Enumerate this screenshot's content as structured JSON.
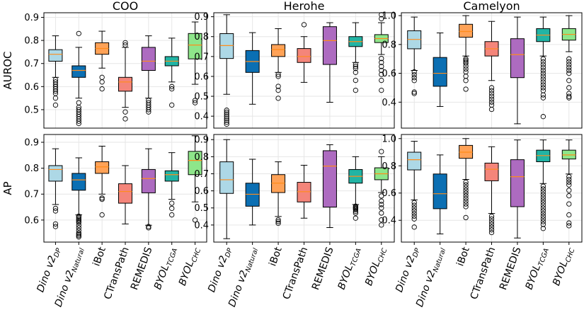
{
  "chart_data": {
    "type": "box",
    "figure": {
      "row_labels": [
        "AUROC",
        "AP"
      ],
      "column_titles": [
        "COO",
        "Herohe",
        "Camelyon"
      ],
      "models": [
        {
          "base": "Dino v2",
          "sub": "DP"
        },
        {
          "base": "Dino v2",
          "sub": "Natural"
        },
        {
          "base": "iBot",
          "sub": ""
        },
        {
          "base": "CTransPath",
          "sub": ""
        },
        {
          "base": "REMEDIS",
          "sub": ""
        },
        {
          "base": "BYOL",
          "sub": "TCGA"
        },
        {
          "base": "BYOL",
          "sub": "CHC"
        }
      ],
      "colors": [
        "#add8e6",
        "#0b6fb3",
        "#ffa257",
        "#f4857a",
        "#ad6bc0",
        "#22b4a4",
        "#8ee68a"
      ],
      "median_color": "#ff8c1a"
    },
    "panels": [
      {
        "row": 0,
        "col": 0,
        "metric": "AUROC",
        "dataset": "COO",
        "ylim": [
          0.42,
          0.92
        ],
        "yticks": [
          0.5,
          0.6,
          0.7,
          0.8,
          0.9
        ],
        "boxes": [
          {
            "whislo": 0.64,
            "q1": 0.71,
            "med": 0.74,
            "q3": 0.76,
            "whishi": 0.82,
            "fliers": [
              0.63,
              0.62,
              0.61,
              0.6,
              0.59,
              0.58,
              0.57,
              0.55,
              0.52
            ]
          },
          {
            "whislo": 0.55,
            "q1": 0.64,
            "med": 0.67,
            "q3": 0.69,
            "whishi": 0.77,
            "fliers": [
              0.83,
              0.53,
              0.51,
              0.5,
              0.49,
              0.48,
              0.47,
              0.46,
              0.45,
              0.44
            ]
          },
          {
            "whislo": 0.68,
            "q1": 0.74,
            "med": 0.765,
            "q3": 0.79,
            "whishi": 0.84,
            "fliers": [
              0.64,
              0.62,
              0.59
            ]
          },
          {
            "whislo": 0.51,
            "q1": 0.58,
            "med": 0.62,
            "q3": 0.64,
            "whishi": 0.77,
            "fliers": [
              0.79,
              0.78,
              0.49,
              0.46
            ]
          },
          {
            "whislo": 0.55,
            "q1": 0.67,
            "med": 0.71,
            "q3": 0.77,
            "whishi": 0.82,
            "fliers": [
              0.54,
              0.53,
              0.52,
              0.51,
              0.5,
              0.49
            ]
          },
          {
            "whislo": 0.62,
            "q1": 0.69,
            "med": 0.71,
            "q3": 0.73,
            "whishi": 0.81,
            "fliers": [
              0.6,
              0.59,
              0.52
            ]
          },
          {
            "whislo": 0.61,
            "q1": 0.72,
            "med": 0.78,
            "q3": 0.83,
            "whishi": 0.88,
            "fliers": [
              0.54,
              0.53
            ]
          }
        ]
      },
      {
        "row": 0,
        "col": 1,
        "metric": "AUROC",
        "dataset": "Herohe",
        "ylim": [
          0.34,
          0.92
        ],
        "yticks": [
          0.4,
          0.5,
          0.6,
          0.7,
          0.8,
          0.9
        ],
        "boxes": [
          {
            "whislo": 0.51,
            "q1": 0.69,
            "med": 0.755,
            "q3": 0.815,
            "whishi": 0.91,
            "fliers": [
              0.43,
              0.42,
              0.41,
              0.4,
              0.39,
              0.38,
              0.37,
              0.36
            ]
          },
          {
            "whislo": 0.46,
            "q1": 0.62,
            "med": 0.675,
            "q3": 0.73,
            "whishi": 0.82,
            "fliers": []
          },
          {
            "whislo": 0.62,
            "q1": 0.7,
            "med": 0.735,
            "q3": 0.76,
            "whishi": 0.84,
            "fliers": [
              0.61,
              0.6,
              0.55,
              0.53,
              0.49
            ]
          },
          {
            "whislo": 0.57,
            "q1": 0.67,
            "med": 0.7,
            "q3": 0.74,
            "whishi": 0.8,
            "fliers": [
              0.86
            ]
          },
          {
            "whislo": 0.47,
            "q1": 0.66,
            "med": 0.78,
            "q3": 0.85,
            "whishi": 0.87,
            "fliers": []
          },
          {
            "whislo": 0.67,
            "q1": 0.75,
            "med": 0.775,
            "q3": 0.8,
            "whishi": 0.87,
            "fliers": [
              0.66,
              0.65,
              0.64,
              0.62,
              0.58,
              0.53
            ]
          },
          {
            "whislo": 0.71,
            "q1": 0.77,
            "med": 0.79,
            "q3": 0.81,
            "whishi": 0.87,
            "fliers": [
              0.91,
              0.89,
              0.69,
              0.67,
              0.65,
              0.63,
              0.61,
              0.58,
              0.53
            ]
          }
        ]
      },
      {
        "row": 0,
        "col": 2,
        "metric": "AUROC",
        "dataset": "Camelyon",
        "ylim": [
          0.22,
          1.02
        ],
        "yticks": [
          0.4,
          0.6,
          0.8,
          1.0
        ],
        "boxes": [
          {
            "whislo": 0.62,
            "q1": 0.77,
            "med": 0.835,
            "q3": 0.895,
            "whishi": 0.99,
            "fliers": [
              0.61,
              0.59,
              0.57,
              0.55,
              0.47,
              0.46
            ]
          },
          {
            "whislo": 0.37,
            "q1": 0.51,
            "med": 0.6,
            "q3": 0.71,
            "whishi": 0.88,
            "fliers": []
          },
          {
            "whislo": 0.72,
            "q1": 0.85,
            "med": 0.89,
            "q3": 0.94,
            "whishi": 1.0,
            "fliers": [
              0.7,
              0.69,
              0.68,
              0.67,
              0.65,
              0.63,
              0.61,
              0.58,
              0.55,
              0.49
            ]
          },
          {
            "whislo": 0.55,
            "q1": 0.72,
            "med": 0.77,
            "q3": 0.82,
            "whishi": 0.96,
            "fliers": [
              0.5,
              0.48,
              0.46,
              0.44,
              0.42,
              0.4,
              0.38,
              0.35
            ]
          },
          {
            "whislo": 0.25,
            "q1": 0.57,
            "med": 0.73,
            "q3": 0.84,
            "whishi": 0.99,
            "fliers": []
          },
          {
            "whislo": 0.72,
            "q1": 0.82,
            "med": 0.865,
            "q3": 0.91,
            "whishi": 0.99,
            "fliers": [
              0.7,
              0.68,
              0.66,
              0.64,
              0.62,
              0.6,
              0.58,
              0.56,
              0.54,
              0.52,
              0.5,
              0.48,
              0.45,
              0.43,
              0.3
            ]
          },
          {
            "whislo": 0.75,
            "q1": 0.83,
            "med": 0.87,
            "q3": 0.91,
            "whishi": 1.0,
            "fliers": [
              0.7,
              0.68,
              0.66,
              0.64,
              0.62,
              0.6,
              0.55,
              0.5,
              0.46,
              0.44,
              0.43
            ]
          }
        ]
      },
      {
        "row": 1,
        "col": 0,
        "metric": "AP",
        "dataset": "COO",
        "ylim": [
          0.515,
          0.93
        ],
        "yticks": [
          0.6,
          0.7,
          0.8,
          0.9
        ],
        "boxes": [
          {
            "whislo": 0.66,
            "q1": 0.75,
            "med": 0.795,
            "q3": 0.81,
            "whishi": 0.875,
            "fliers": [
              0.645,
              0.635,
              0.585,
              0.575
            ]
          },
          {
            "whislo": 0.62,
            "q1": 0.715,
            "med": 0.755,
            "q3": 0.78,
            "whishi": 0.84,
            "fliers": [
              0.615,
              0.61,
              0.605,
              0.6,
              0.595,
              0.59,
              0.58,
              0.57,
              0.56,
              0.55,
              0.545,
              0.54,
              0.535
            ]
          },
          {
            "whislo": 0.7,
            "q1": 0.78,
            "med": 0.805,
            "q3": 0.825,
            "whishi": 0.885,
            "fliers": [
              0.685,
              0.68,
              0.62
            ]
          },
          {
            "whislo": 0.585,
            "q1": 0.665,
            "med": 0.71,
            "q3": 0.74,
            "whishi": 0.81,
            "fliers": []
          },
          {
            "whislo": 0.58,
            "q1": 0.705,
            "med": 0.76,
            "q3": 0.795,
            "whishi": 0.875,
            "fliers": [
              0.575,
              0.57
            ]
          },
          {
            "whislo": 0.68,
            "q1": 0.75,
            "med": 0.775,
            "q3": 0.79,
            "whishi": 0.86,
            "fliers": [
              0.665,
              0.645,
              0.62
            ]
          },
          {
            "whislo": 0.67,
            "q1": 0.775,
            "med": 0.83,
            "q3": 0.865,
            "whishi": 0.925,
            "fliers": [
              0.6
            ]
          }
        ]
      },
      {
        "row": 1,
        "col": 1,
        "metric": "AP",
        "dataset": "Herohe",
        "ylim": [
          0.3,
          0.93
        ],
        "yticks": [
          0.4,
          0.5,
          0.6,
          0.7,
          0.8,
          0.9
        ],
        "boxes": [
          {
            "whislo": 0.32,
            "q1": 0.585,
            "med": 0.665,
            "q3": 0.77,
            "whishi": 0.9,
            "fliers": []
          },
          {
            "whislo": 0.4,
            "q1": 0.51,
            "med": 0.58,
            "q3": 0.645,
            "whishi": 0.785,
            "fliers": []
          },
          {
            "whislo": 0.45,
            "q1": 0.59,
            "med": 0.645,
            "q3": 0.695,
            "whishi": 0.77,
            "fliers": [
              0.43,
              0.42,
              0.41
            ]
          },
          {
            "whislo": 0.44,
            "q1": 0.535,
            "med": 0.595,
            "q3": 0.65,
            "whishi": 0.75,
            "fliers": []
          },
          {
            "whislo": 0.385,
            "q1": 0.505,
            "med": 0.745,
            "q3": 0.835,
            "whishi": 0.87,
            "fliers": []
          },
          {
            "whislo": 0.52,
            "q1": 0.645,
            "med": 0.685,
            "q3": 0.725,
            "whishi": 0.8,
            "fliers": [
              0.51,
              0.505,
              0.5,
              0.495,
              0.49,
              0.48,
              0.47,
              0.44
            ]
          },
          {
            "whislo": 0.59,
            "q1": 0.665,
            "med": 0.7,
            "q3": 0.735,
            "whishi": 0.8,
            "fliers": [
              0.83,
              0.57,
              0.54,
              0.52,
              0.5,
              0.47,
              0.43,
              0.4
            ]
          }
        ]
      },
      {
        "row": 1,
        "col": 2,
        "metric": "AP",
        "dataset": "Camelyon",
        "ylim": [
          0.24,
          1.03
        ],
        "yticks": [
          0.4,
          0.6,
          0.8,
          1.0
        ],
        "boxes": [
          {
            "whislo": 0.55,
            "q1": 0.77,
            "med": 0.845,
            "q3": 0.9,
            "whishi": 0.98,
            "fliers": [
              0.53,
              0.51,
              0.49,
              0.47,
              0.45,
              0.43,
              0.41,
              0.35
            ]
          },
          {
            "whislo": 0.3,
            "q1": 0.485,
            "med": 0.595,
            "q3": 0.74,
            "whishi": 0.88,
            "fliers": []
          },
          {
            "whislo": 0.7,
            "q1": 0.855,
            "med": 0.9,
            "q3": 0.95,
            "whishi": 1.0,
            "fliers": [
              0.68,
              0.66,
              0.64,
              0.62,
              0.6,
              0.58,
              0.56,
              0.54,
              0.52,
              0.5,
              0.42
            ]
          },
          {
            "whislo": 0.45,
            "q1": 0.69,
            "med": 0.775,
            "q3": 0.82,
            "whishi": 0.94,
            "fliers": [
              0.43,
              0.41,
              0.39,
              0.37,
              0.35,
              0.33,
              0.31
            ]
          },
          {
            "whislo": 0.27,
            "q1": 0.5,
            "med": 0.72,
            "q3": 0.845,
            "whishi": 0.99,
            "fliers": []
          },
          {
            "whislo": 0.67,
            "q1": 0.83,
            "med": 0.875,
            "q3": 0.915,
            "whishi": 0.99,
            "fliers": [
              0.65,
              0.63,
              0.61,
              0.59,
              0.57,
              0.55,
              0.53,
              0.51,
              0.49,
              0.47,
              0.45,
              0.43,
              0.41,
              0.39,
              0.37,
              0.34
            ]
          },
          {
            "whislo": 0.74,
            "q1": 0.85,
            "med": 0.88,
            "q3": 0.915,
            "whishi": 0.99,
            "fliers": [
              0.72,
              0.7,
              0.68,
              0.66,
              0.62,
              0.58,
              0.52,
              0.44,
              0.38,
              0.36
            ]
          }
        ]
      }
    ]
  }
}
